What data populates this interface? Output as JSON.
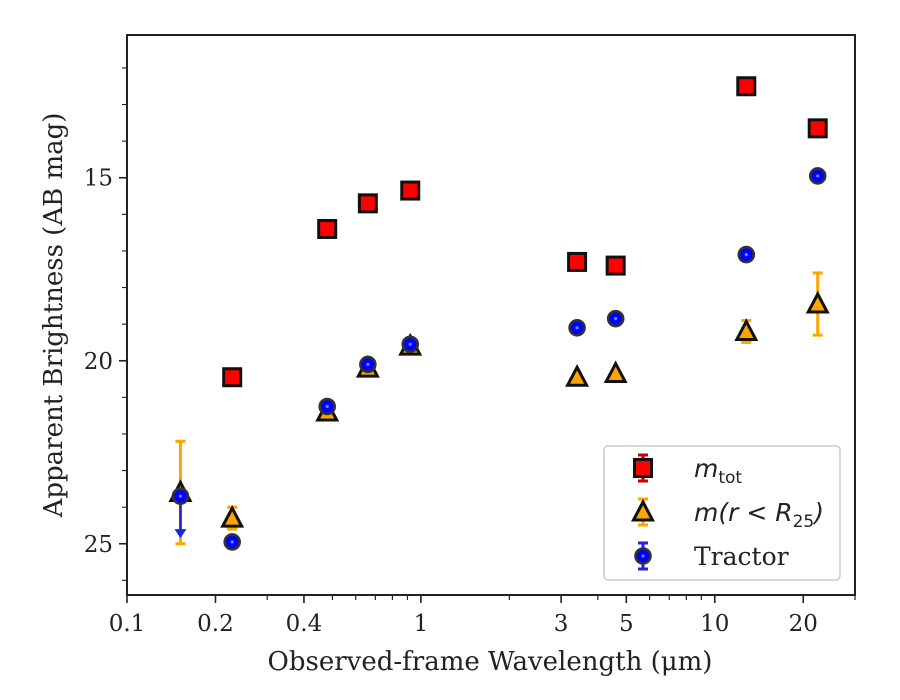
{
  "chart_data": {
    "type": "scatter",
    "title": "",
    "xlabel": "Observed-frame Wavelength (μm)",
    "ylabel": "Apparent Brightness (AB mag)",
    "xscale": "log",
    "xlim": [
      0.1,
      30
    ],
    "ylim": [
      26.4,
      11.1
    ],
    "y_inverted": true,
    "x_ticks": [
      0.1,
      0.2,
      0.4,
      1,
      3,
      5,
      10,
      20
    ],
    "x_tick_labels": [
      "0.1",
      "0.2",
      "0.4",
      "1",
      "3",
      "5",
      "10",
      "20"
    ],
    "y_ticks": [
      15,
      20,
      25
    ],
    "y_tick_labels": [
      "15",
      "20",
      "25"
    ],
    "grid": false,
    "legend_position": "lower-right",
    "series": [
      {
        "name": "m_tot",
        "legend_label": {
          "main": "m",
          "sub": "tot"
        },
        "marker": "square",
        "color": "#ff0000",
        "errorbar_color": "#cc0000",
        "points": [
          {
            "x": 0.228,
            "y": 20.45
          },
          {
            "x": 0.48,
            "y": 16.4
          },
          {
            "x": 0.66,
            "y": 15.7
          },
          {
            "x": 0.92,
            "y": 15.35
          },
          {
            "x": 3.4,
            "y": 17.3
          },
          {
            "x": 4.6,
            "y": 17.4
          },
          {
            "x": 12.8,
            "y": 12.5
          },
          {
            "x": 22.4,
            "y": 13.65
          }
        ]
      },
      {
        "name": "m(r < R25)",
        "legend_label": {
          "main": "m(r < R",
          "sub": "25",
          "tail": ")"
        },
        "marker": "triangle",
        "color": "#ffa500",
        "errorbar_color": "#ffa500",
        "points": [
          {
            "x": 0.152,
            "y": 23.6,
            "err": 1.4
          },
          {
            "x": 0.228,
            "y": 24.3,
            "err": 0.3
          },
          {
            "x": 0.48,
            "y": 21.4
          },
          {
            "x": 0.66,
            "y": 20.2
          },
          {
            "x": 0.92,
            "y": 19.6
          },
          {
            "x": 3.4,
            "y": 20.45
          },
          {
            "x": 4.6,
            "y": 20.35
          },
          {
            "x": 12.8,
            "y": 19.2,
            "err": 0.3
          },
          {
            "x": 22.4,
            "y": 18.45,
            "err": 0.85
          }
        ]
      },
      {
        "name": "Tractor",
        "legend_label": {
          "main": "Tractor"
        },
        "marker": "circle",
        "color": "#0000ff",
        "errorbar_color": "#2222dd",
        "points": [
          {
            "x": 0.152,
            "y": 23.7,
            "upper_limit": true
          },
          {
            "x": 0.228,
            "y": 24.95
          },
          {
            "x": 0.48,
            "y": 21.25
          },
          {
            "x": 0.66,
            "y": 20.1
          },
          {
            "x": 0.92,
            "y": 19.55
          },
          {
            "x": 3.4,
            "y": 19.1
          },
          {
            "x": 4.6,
            "y": 18.85
          },
          {
            "x": 12.8,
            "y": 17.1
          },
          {
            "x": 22.4,
            "y": 14.95
          }
        ]
      }
    ]
  }
}
